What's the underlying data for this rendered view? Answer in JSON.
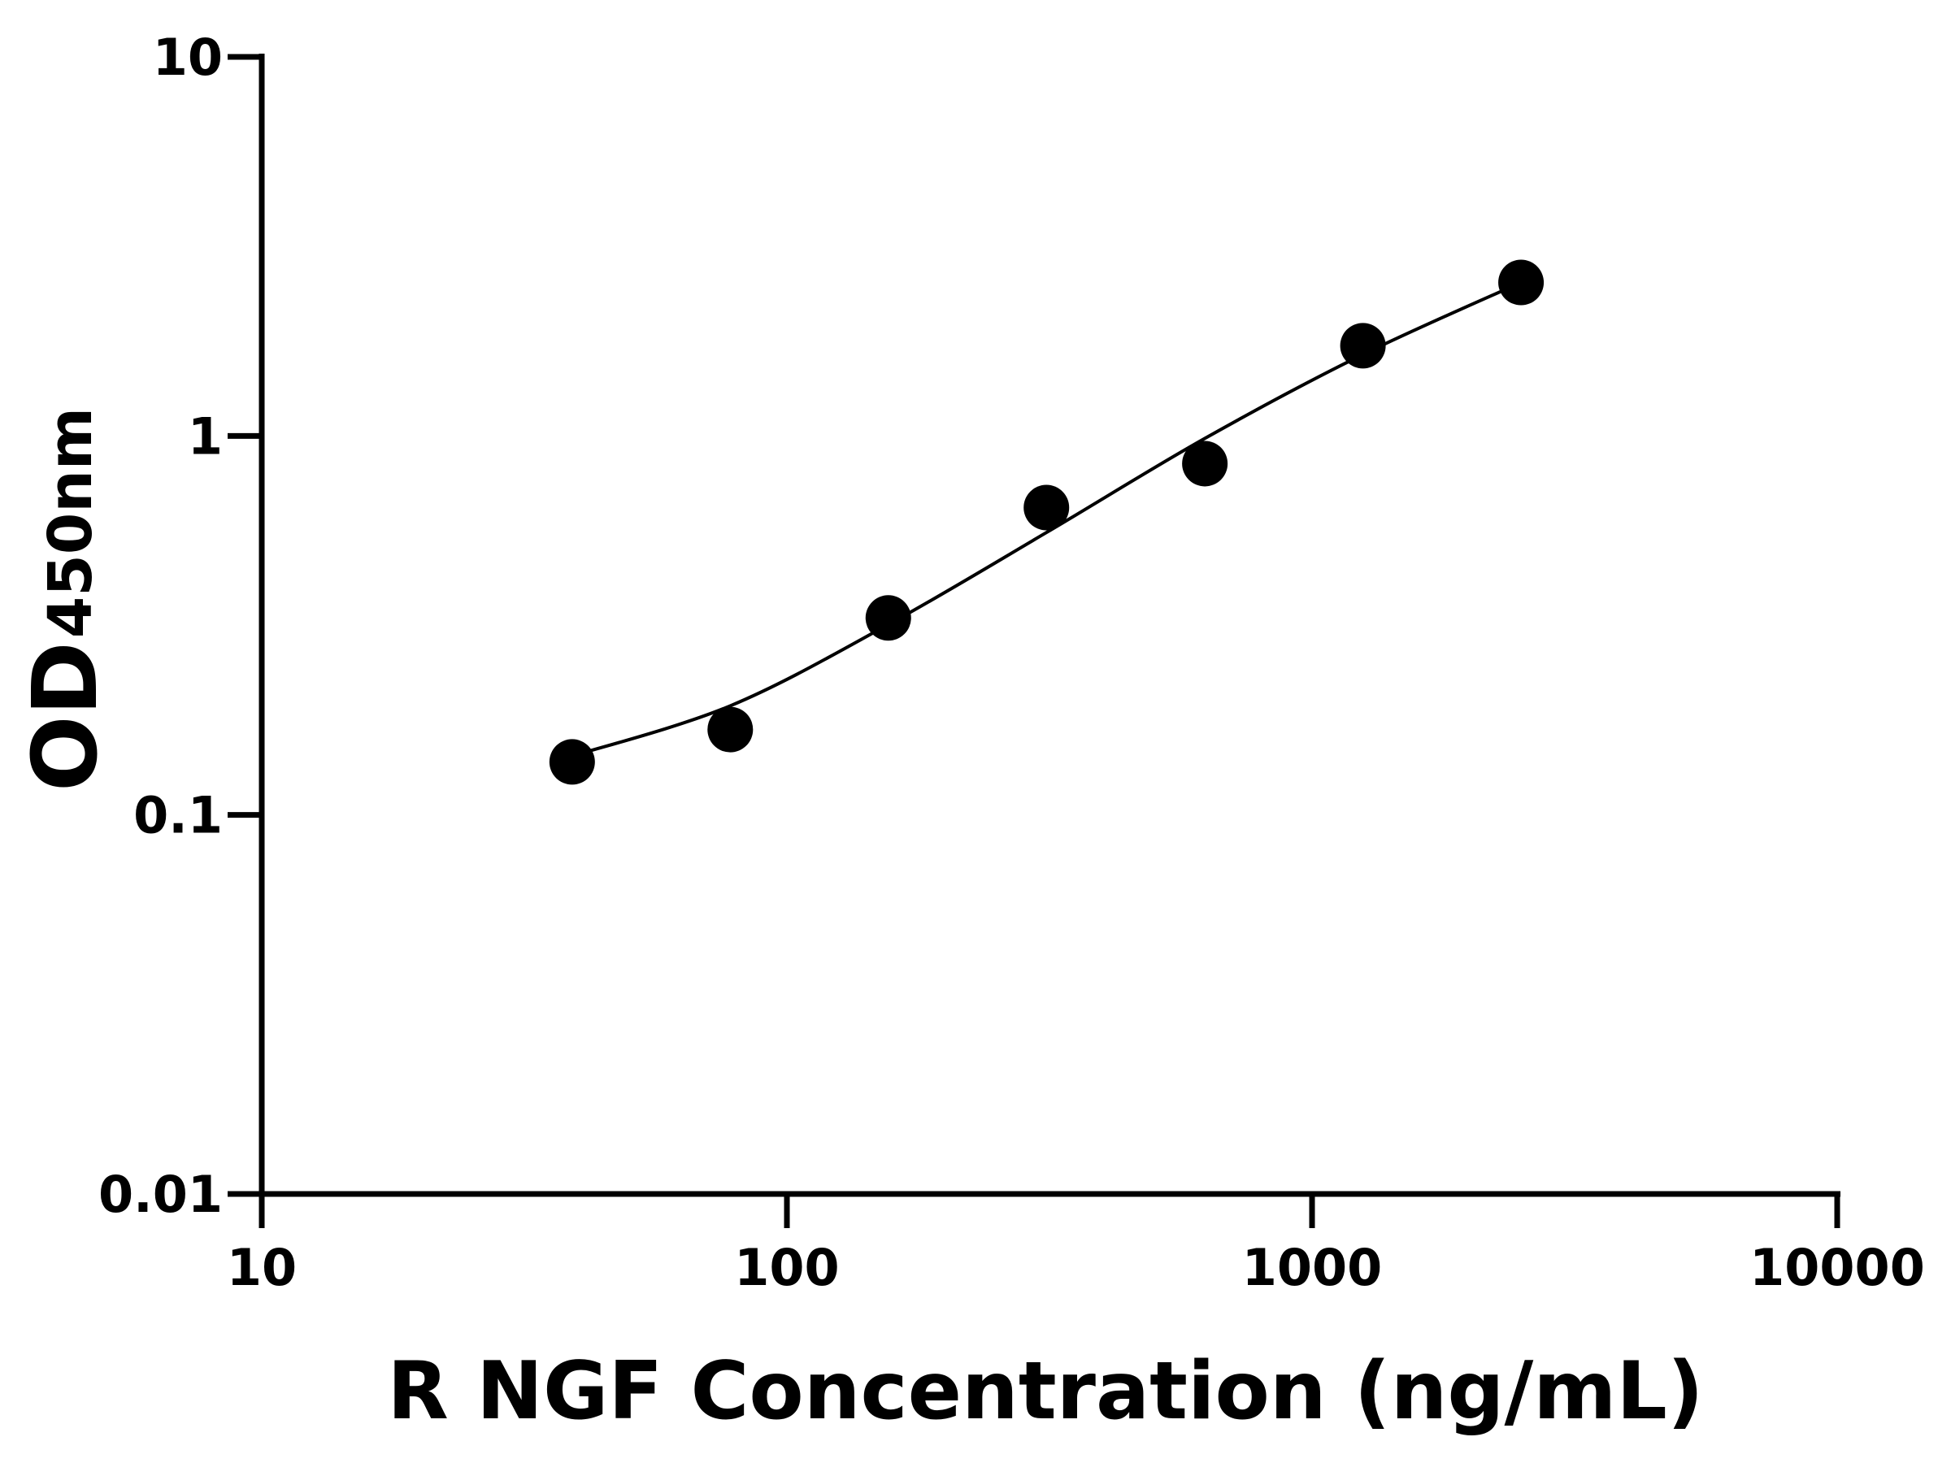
{
  "chart_data": {
    "type": "scatter",
    "x_label": "R NGF Concentration (ng/mL)",
    "y_label": {
      "main": "OD",
      "sub": "450nm"
    },
    "xscale": "log",
    "yscale": "log",
    "xlim": [
      10,
      10000
    ],
    "xticks": [
      10,
      100,
      1000,
      10000
    ],
    "ylim": [
      0.01,
      10
    ],
    "yticks": [
      0.01,
      0.1,
      1,
      10
    ],
    "series": [
      {
        "kind": "points",
        "color": "#000000",
        "x": [
          39,
          78,
          156,
          312,
          625,
          1250,
          2500
        ],
        "values": [
          0.138,
          0.168,
          0.331,
          0.647,
          0.845,
          1.73,
          2.54
        ]
      },
      {
        "kind": "curve",
        "color": "#000000",
        "x": [
          39,
          78,
          156,
          312,
          625,
          1250,
          2500
        ],
        "values": [
          0.143,
          0.194,
          0.318,
          0.556,
          0.985,
          1.64,
          2.54
        ]
      }
    ]
  }
}
